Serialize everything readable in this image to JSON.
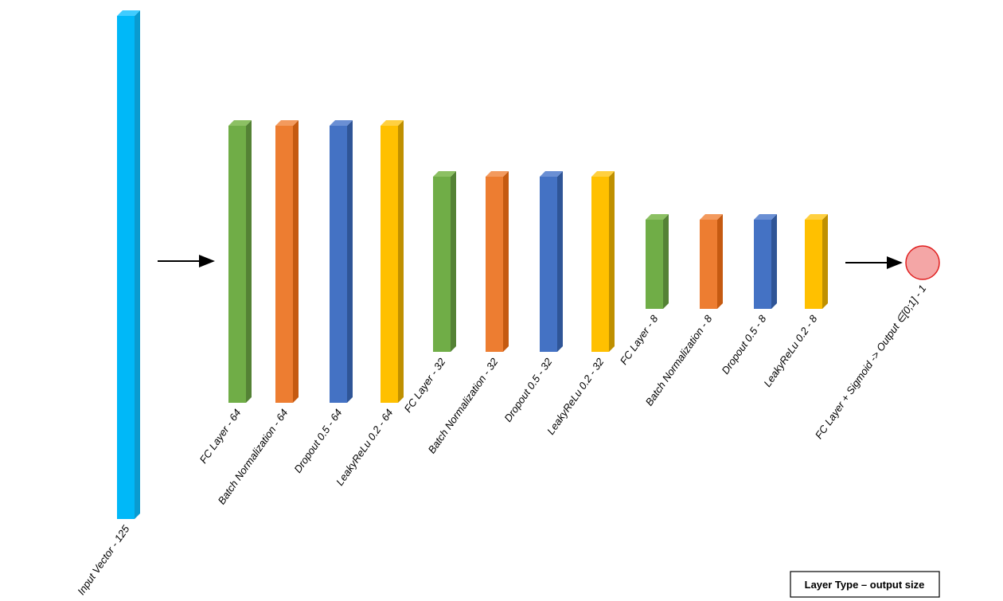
{
  "nodes": [
    {
      "label": "Input Vector - 125"
    },
    {
      "label": "FC Layer - 64"
    },
    {
      "label": "Batch Normalization - 64"
    },
    {
      "label": "Dropout 0.5 - 64"
    },
    {
      "label": "LeakyReLu 0.2 - 64"
    },
    {
      "label": "FC Layer - 32"
    },
    {
      "label": "Batch Normalization - 32"
    },
    {
      "label": "Dropout 0.5 - 32"
    },
    {
      "label": "LeakyReLu 0.2 - 32"
    },
    {
      "label": "FC Layer - 8"
    },
    {
      "label": "Batch Normalization - 8"
    },
    {
      "label": "Dropout 0.5 - 8"
    },
    {
      "label": "LeakyReLu 0.2 - 8"
    },
    {
      "label": "FC Layer + Sigmoid -> Output ∈[0;1] - 1"
    }
  ],
  "legend": {
    "text": "Layer Type – output size"
  }
}
